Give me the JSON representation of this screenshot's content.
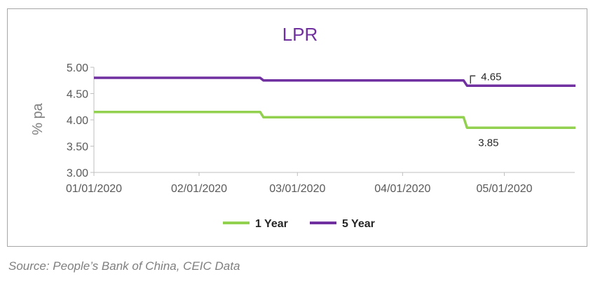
{
  "chart_data": {
    "type": "line",
    "title": "LPR",
    "xlabel": "",
    "ylabel": "% pa",
    "ylim": [
      3.0,
      5.0
    ],
    "yticks": [
      "3.00",
      "3.50",
      "4.00",
      "4.50",
      "5.00"
    ],
    "xticks": [
      "01/01/2020",
      "02/01/2020",
      "03/01/2020",
      "04/01/2020",
      "05/01/2020"
    ],
    "grid": false,
    "legend": "bottom",
    "series": [
      {
        "name": "1 Year",
        "color": "#92d050",
        "points": [
          {
            "x": "2020-01-01",
            "y": 4.15
          },
          {
            "x": "2020-02-19",
            "y": 4.15
          },
          {
            "x": "2020-02-20",
            "y": 4.05
          },
          {
            "x": "2020-04-19",
            "y": 4.05
          },
          {
            "x": "2020-04-20",
            "y": 3.85
          },
          {
            "x": "2020-05-22",
            "y": 3.85
          }
        ]
      },
      {
        "name": "5 Year",
        "color": "#7030a0",
        "points": [
          {
            "x": "2020-01-01",
            "y": 4.8
          },
          {
            "x": "2020-02-19",
            "y": 4.8
          },
          {
            "x": "2020-02-20",
            "y": 4.75
          },
          {
            "x": "2020-04-19",
            "y": 4.75
          },
          {
            "x": "2020-04-20",
            "y": 4.65
          },
          {
            "x": "2020-05-22",
            "y": 4.65
          }
        ]
      }
    ],
    "annotations": [
      {
        "text": "4.65",
        "series": "5 Year",
        "x": "2020-04-20"
      },
      {
        "text": "3.85",
        "series": "1 Year",
        "x": "2020-04-20"
      }
    ]
  },
  "source_text": "Source: People’s Bank of China, CEIC Data"
}
